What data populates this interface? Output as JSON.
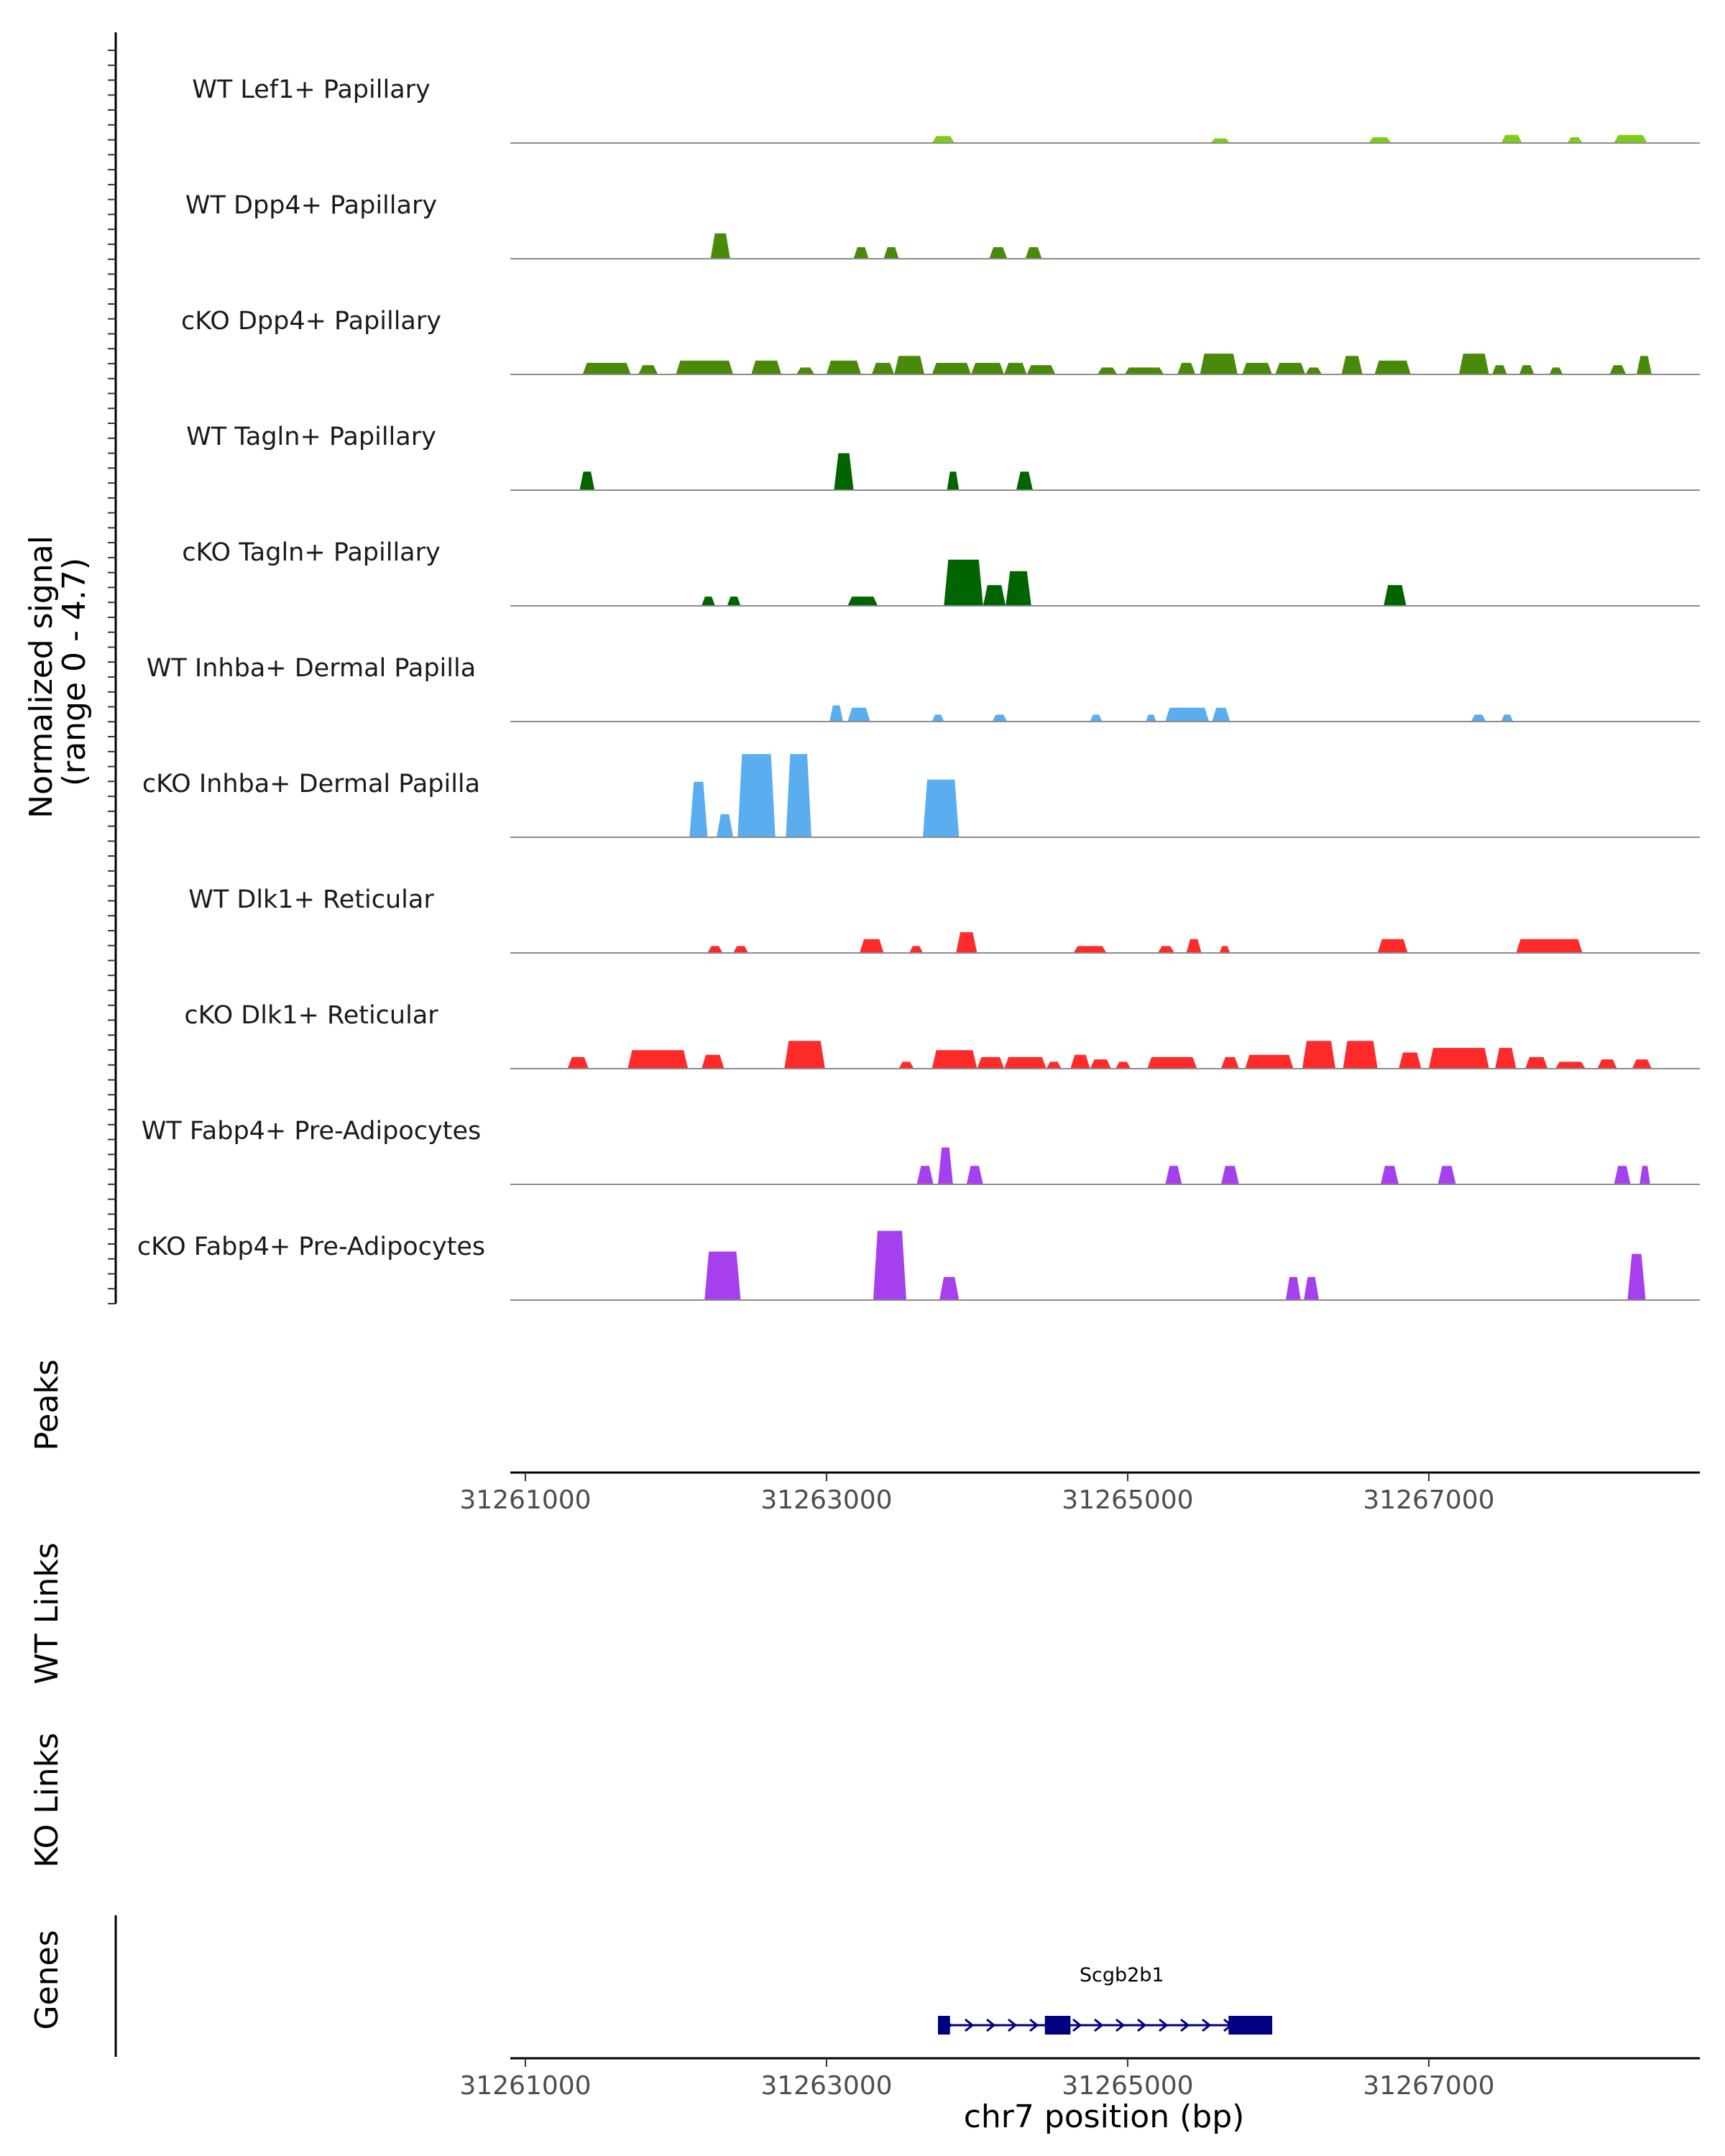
{
  "chart_data": {
    "type": "area",
    "title": "",
    "ylabel": "Normalized signal\n(range 0 - 4.7)",
    "ylabel_lines": [
      "Normalized signal",
      "(range 0 - 4.7)"
    ],
    "xlabel": "chr7 position (bp)",
    "ylim": [
      0,
      4.7
    ],
    "xlim": [
      31260900,
      31268800
    ],
    "x_ticks": [
      31261000,
      31263000,
      31265000,
      31267000
    ],
    "x_tick_labels": [
      "31261000",
      "31263000",
      "31265000",
      "31267000"
    ],
    "tracks": [
      {
        "name": "WT Lef1+ Papillary",
        "color": "#7ccd1a",
        "peaks": [
          [
            31263700,
            31263850,
            0.3
          ],
          [
            31265550,
            31265680,
            0.2
          ],
          [
            31266600,
            31266750,
            0.25
          ],
          [
            31267480,
            31267620,
            0.35
          ],
          [
            31267920,
            31268020,
            0.25
          ],
          [
            31268230,
            31268450,
            0.35
          ]
        ]
      },
      {
        "name": "WT Dpp4+ Papillary",
        "color": "#4a8a0a",
        "peaks": [
          [
            31262230,
            31262360,
            1.1
          ],
          [
            31263180,
            31263280,
            0.5
          ],
          [
            31263380,
            31263480,
            0.5
          ],
          [
            31264080,
            31264200,
            0.5
          ],
          [
            31264320,
            31264430,
            0.5
          ]
        ]
      },
      {
        "name": "cKO Dpp4+ Papillary",
        "color": "#4a8a0a",
        "peaks": [
          [
            31261380,
            31261700,
            0.5
          ],
          [
            31261750,
            31261880,
            0.4
          ],
          [
            31262000,
            31262380,
            0.6
          ],
          [
            31262500,
            31262700,
            0.6
          ],
          [
            31262800,
            31262920,
            0.3
          ],
          [
            31263000,
            31263230,
            0.6
          ],
          [
            31263300,
            31263450,
            0.5
          ],
          [
            31263450,
            31263650,
            0.8
          ],
          [
            31263700,
            31263960,
            0.5
          ],
          [
            31263960,
            31264180,
            0.5
          ],
          [
            31264180,
            31264330,
            0.5
          ],
          [
            31264330,
            31264520,
            0.4
          ],
          [
            31264800,
            31264930,
            0.3
          ],
          [
            31264980,
            31265240,
            0.3
          ],
          [
            31265330,
            31265450,
            0.5
          ],
          [
            31265480,
            31265730,
            0.9
          ],
          [
            31265760,
            31265960,
            0.5
          ],
          [
            31265980,
            31266180,
            0.5
          ],
          [
            31266180,
            31266290,
            0.3
          ],
          [
            31266420,
            31266560,
            0.8
          ],
          [
            31266640,
            31266880,
            0.6
          ],
          [
            31267200,
            31267400,
            0.9
          ],
          [
            31267420,
            31267520,
            0.4
          ],
          [
            31267600,
            31267700,
            0.4
          ],
          [
            31267800,
            31267890,
            0.3
          ],
          [
            31268200,
            31268310,
            0.4
          ],
          [
            31268380,
            31268480,
            0.8
          ]
        ]
      },
      {
        "name": "WT Tagln+ Papillary",
        "color": "#006400",
        "peaks": [
          [
            31261360,
            31261460,
            0.8
          ],
          [
            31263050,
            31263180,
            1.6
          ],
          [
            31263800,
            31263880,
            0.8
          ],
          [
            31264260,
            31264370,
            0.8
          ]
        ]
      },
      {
        "name": "cKO Tagln+ Papillary",
        "color": "#006400",
        "peaks": [
          [
            31262170,
            31262260,
            0.4
          ],
          [
            31262340,
            31262430,
            0.4
          ],
          [
            31263140,
            31263340,
            0.4
          ],
          [
            31263780,
            31264040,
            2.0
          ],
          [
            31264040,
            31264190,
            0.9
          ],
          [
            31264190,
            31264360,
            1.5
          ],
          [
            31266700,
            31266850,
            0.9
          ]
        ]
      },
      {
        "name": "WT Inhba+ Dermal Papilla",
        "color": "#5aadee",
        "peaks": [
          [
            31263020,
            31263110,
            0.7
          ],
          [
            31263140,
            31263290,
            0.6
          ],
          [
            31263700,
            31263780,
            0.3
          ],
          [
            31264100,
            31264200,
            0.3
          ],
          [
            31264750,
            31264830,
            0.3
          ],
          [
            31265120,
            31265190,
            0.3
          ],
          [
            31265250,
            31265540,
            0.6
          ],
          [
            31265560,
            31265680,
            0.6
          ],
          [
            31267280,
            31267380,
            0.3
          ],
          [
            31267480,
            31267560,
            0.3
          ]
        ]
      },
      {
        "name": "cKO Inhba+ Dermal Papilla",
        "color": "#5aadee",
        "peaks": [
          [
            31262090,
            31262210,
            2.4
          ],
          [
            31262270,
            31262380,
            1.0
          ],
          [
            31262410,
            31262660,
            3.6
          ],
          [
            31262730,
            31262900,
            3.6
          ],
          [
            31263640,
            31263880,
            2.5
          ]
        ]
      },
      {
        "name": "WT Dlk1+ Reticular",
        "color": "#ff2a2a",
        "peaks": [
          [
            31262210,
            31262310,
            0.3
          ],
          [
            31262380,
            31262480,
            0.3
          ],
          [
            31263220,
            31263380,
            0.6
          ],
          [
            31263550,
            31263640,
            0.3
          ],
          [
            31263860,
            31264000,
            0.9
          ],
          [
            31264640,
            31264860,
            0.3
          ],
          [
            31265200,
            31265310,
            0.3
          ],
          [
            31265390,
            31265490,
            0.6
          ],
          [
            31265610,
            31265680,
            0.3
          ],
          [
            31266660,
            31266860,
            0.6
          ],
          [
            31267580,
            31268020,
            0.6
          ]
        ]
      },
      {
        "name": "cKO Dlk1+ Reticular",
        "color": "#ff2a2a",
        "peaks": [
          [
            31261280,
            31261420,
            0.5
          ],
          [
            31261680,
            31262080,
            0.8
          ],
          [
            31262170,
            31262320,
            0.6
          ],
          [
            31262720,
            31262990,
            1.2
          ],
          [
            31263480,
            31263580,
            0.3
          ],
          [
            31263700,
            31264000,
            0.8
          ],
          [
            31264000,
            31264180,
            0.5
          ],
          [
            31264180,
            31264460,
            0.5
          ],
          [
            31264460,
            31264560,
            0.3
          ],
          [
            31264620,
            31264750,
            0.6
          ],
          [
            31264750,
            31264890,
            0.4
          ],
          [
            31264920,
            31265020,
            0.3
          ],
          [
            31265130,
            31265460,
            0.5
          ],
          [
            31265620,
            31265740,
            0.5
          ],
          [
            31265780,
            31266100,
            0.6
          ],
          [
            31266160,
            31266380,
            1.2
          ],
          [
            31266430,
            31266660,
            1.2
          ],
          [
            31266800,
            31266950,
            0.7
          ],
          [
            31267000,
            31267400,
            0.9
          ],
          [
            31267440,
            31267580,
            0.9
          ],
          [
            31267640,
            31267790,
            0.5
          ],
          [
            31267840,
            31268040,
            0.3
          ],
          [
            31268120,
            31268250,
            0.4
          ],
          [
            31268350,
            31268480,
            0.4
          ]
        ]
      },
      {
        "name": "WT Fabp4+ Pre-Adipocytes",
        "color": "#a640ee",
        "peaks": [
          [
            31263600,
            31263710,
            0.8
          ],
          [
            31263740,
            31263840,
            1.6
          ],
          [
            31263930,
            31264040,
            0.8
          ],
          [
            31265250,
            31265360,
            0.8
          ],
          [
            31265620,
            31265740,
            0.8
          ],
          [
            31266680,
            31266800,
            0.8
          ],
          [
            31267060,
            31267180,
            0.8
          ],
          [
            31268230,
            31268340,
            0.8
          ],
          [
            31268400,
            31268470,
            0.8
          ]
        ]
      },
      {
        "name": "cKO Fabp4+ Pre-Adipocytes",
        "color": "#a640ee",
        "peaks": [
          [
            31262190,
            31262430,
            2.1
          ],
          [
            31263310,
            31263530,
            3.0
          ],
          [
            31263750,
            31263880,
            1.0
          ],
          [
            31266050,
            31266150,
            1.0
          ],
          [
            31266170,
            31266270,
            1.0
          ],
          [
            31268320,
            31268440,
            2.0
          ]
        ]
      }
    ],
    "panels": [
      "Peaks",
      "WT Links",
      "KO Links",
      "Genes"
    ],
    "genes": [
      {
        "name": "Scgb2b1",
        "strand": "+",
        "start": 31263740,
        "end": 31265960,
        "exons": [
          [
            31263740,
            31263820
          ],
          [
            31264450,
            31264620
          ],
          [
            31265670,
            31265960
          ]
        ],
        "color": "#000080"
      }
    ]
  }
}
